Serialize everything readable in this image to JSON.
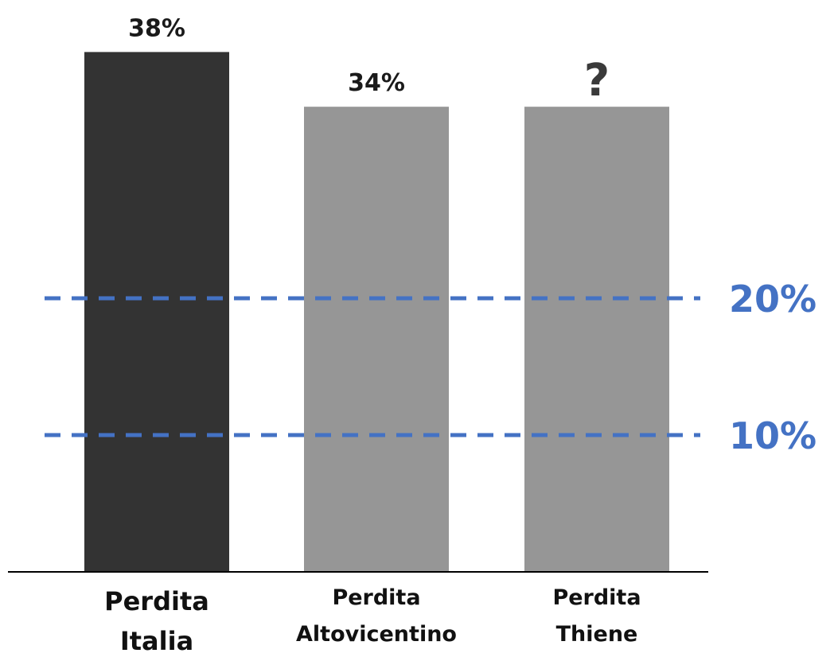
{
  "chart_data": {
    "type": "bar",
    "categories": [
      [
        "Perdita",
        "Italia"
      ],
      [
        "Perdita",
        "Altovicentino"
      ],
      [
        "Perdita",
        "Thiene"
      ]
    ],
    "values": [
      38,
      34,
      34
    ],
    "value_labels": [
      "38%",
      "34%",
      "?"
    ],
    "bar_colors": [
      "#333333",
      "#969696",
      "#969696"
    ],
    "reference_lines": [
      {
        "value": 20,
        "label": "20%"
      },
      {
        "value": 10,
        "label": "10%"
      }
    ],
    "reference_line_color": "#4472c4",
    "ylim": [
      0,
      38
    ],
    "title": "",
    "xlabel": "",
    "ylabel": "",
    "grid": false,
    "legend": "none"
  }
}
